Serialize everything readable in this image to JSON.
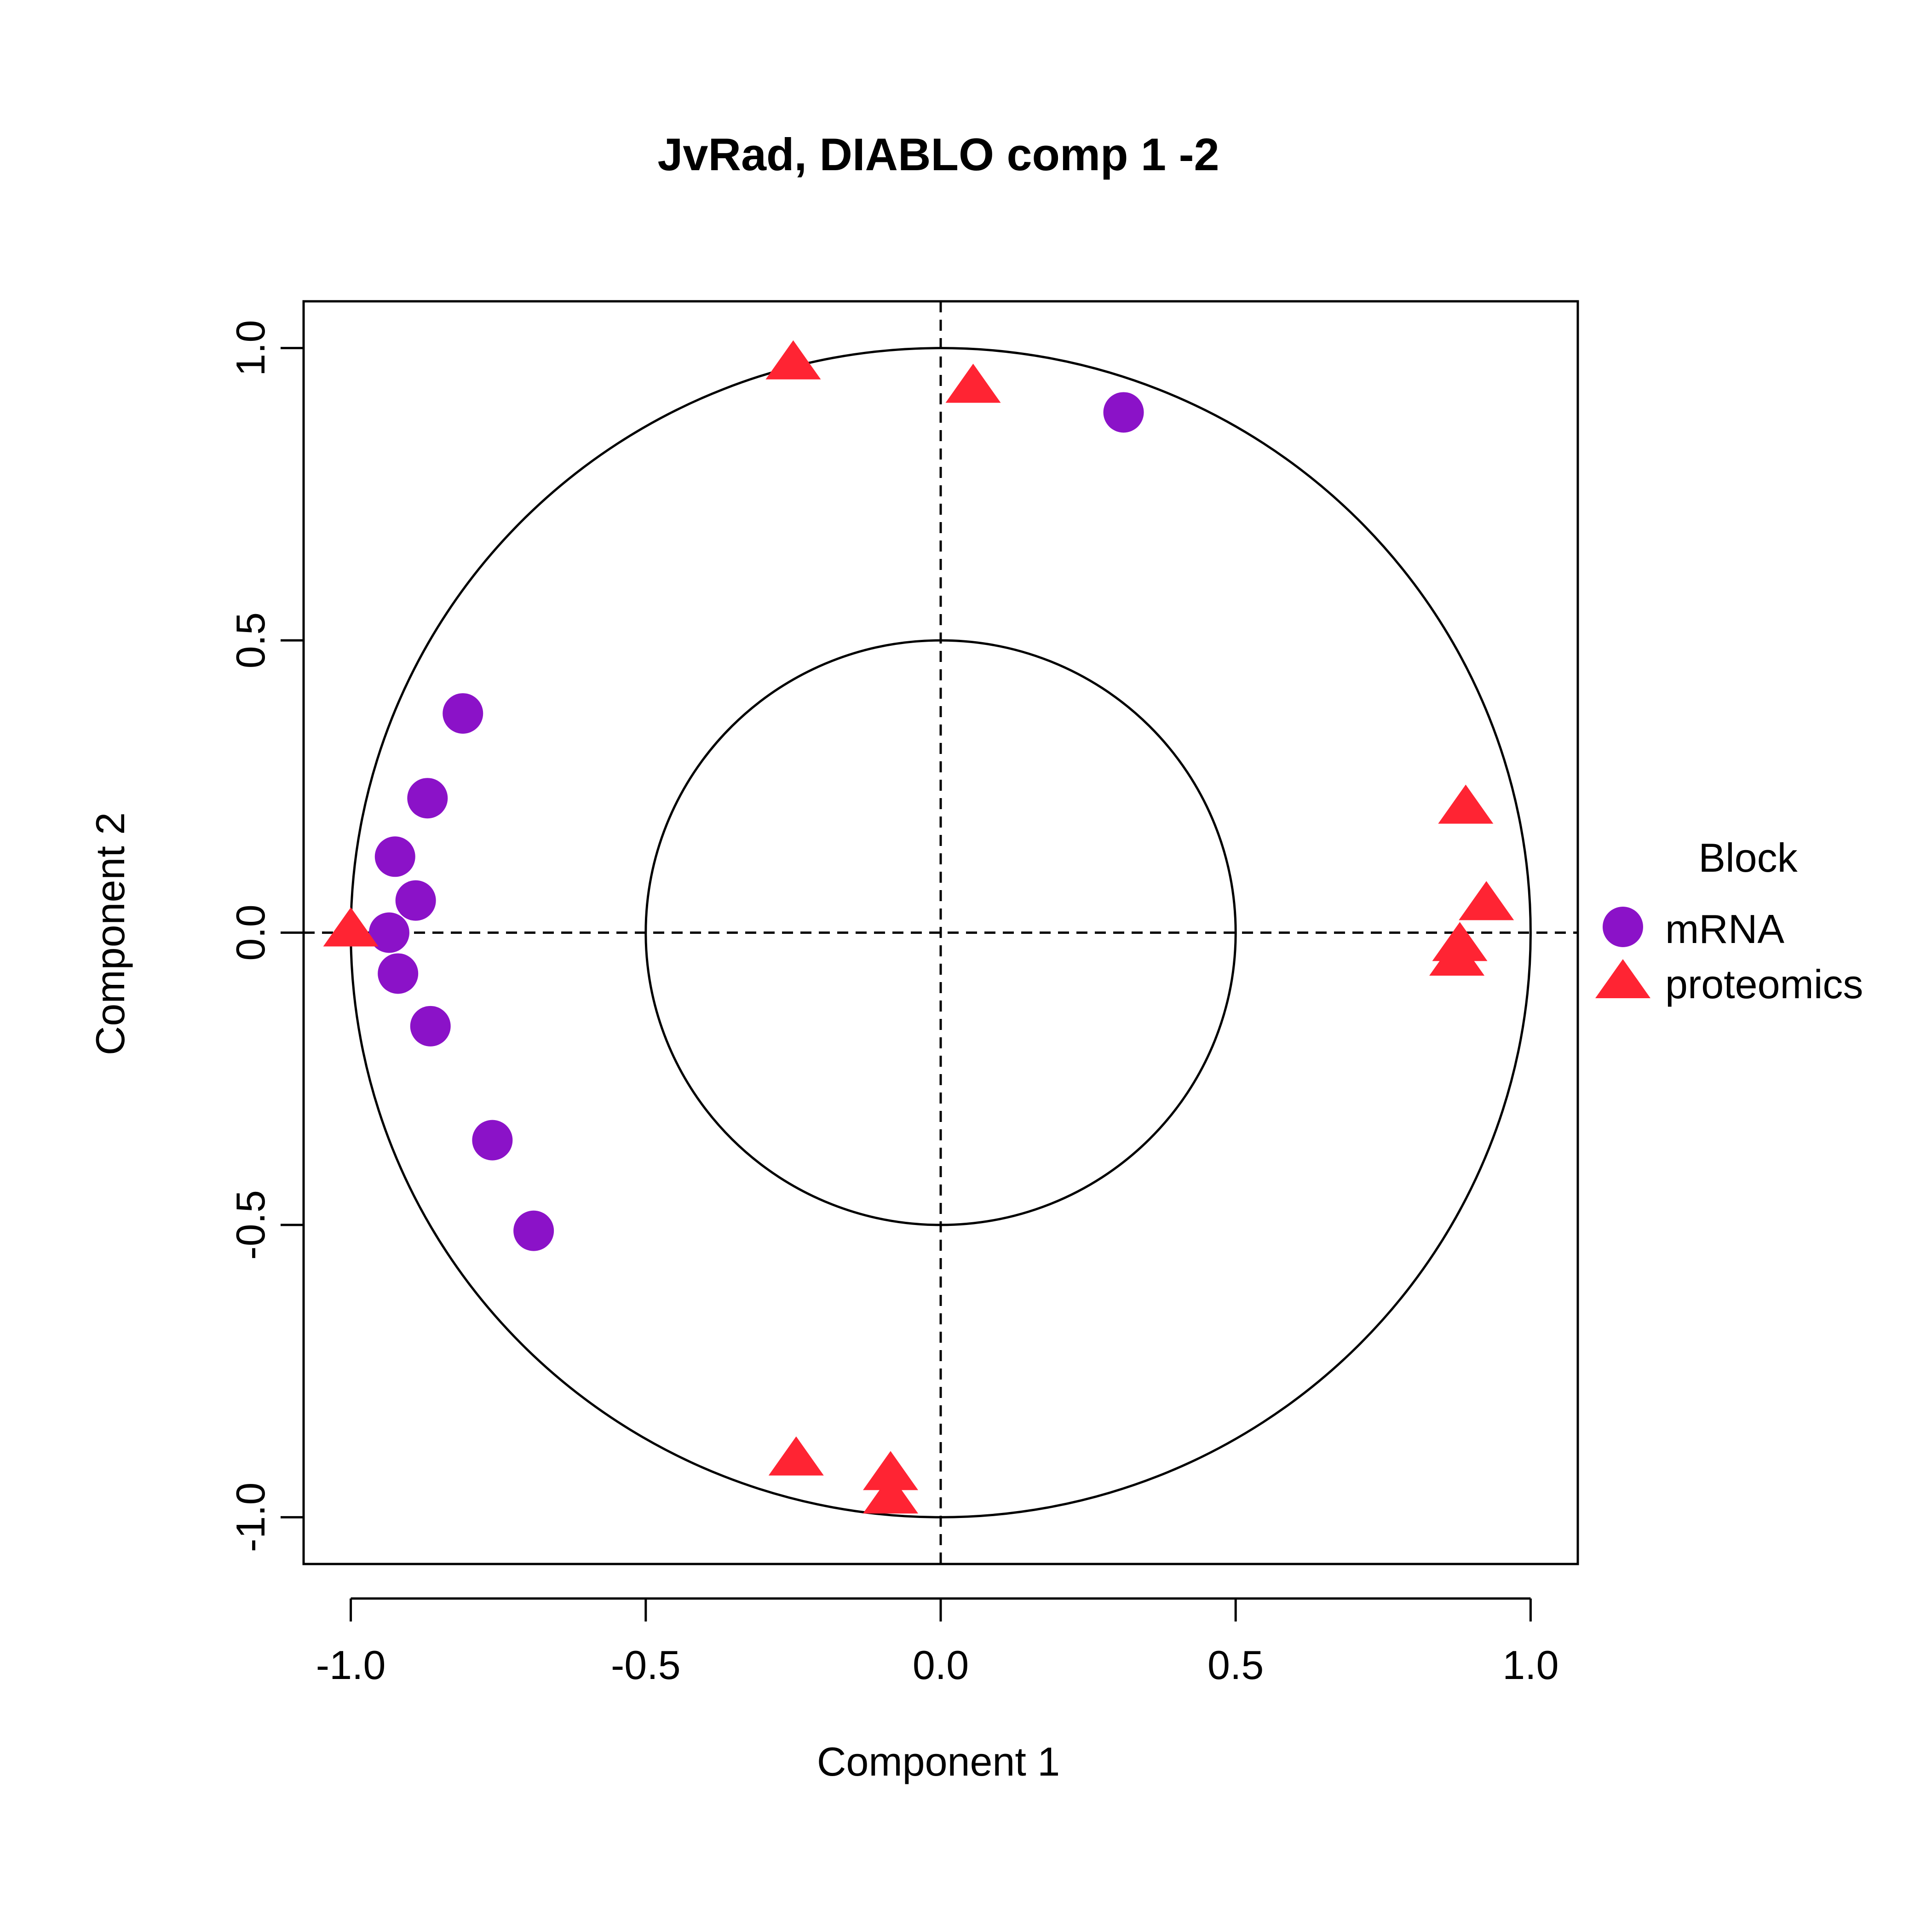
{
  "chart_data": {
    "type": "scatter",
    "title": "JvRad, DIABLO comp 1 -2",
    "xlabel": "Component  1",
    "ylabel": "Component  2",
    "xlim": [
      -1.08,
      1.08
    ],
    "ylim": [
      -1.08,
      1.08
    ],
    "xticks": [
      -1.0,
      -0.5,
      0.0,
      0.5,
      1.0
    ],
    "yticks": [
      -1.0,
      -0.5,
      0.0,
      0.5,
      1.0
    ],
    "xtick_labels": [
      "-1.0",
      "-0.5",
      "0.0",
      "0.5",
      "1.0"
    ],
    "ytick_labels": [
      "-1.0",
      "-0.5",
      "0.0",
      "0.5",
      "1.0"
    ],
    "circles": [
      1.0,
      0.5
    ],
    "reference_lines": {
      "x": 0,
      "y": 0,
      "style": "dashed"
    },
    "grid": false,
    "legend": {
      "title": "Block",
      "placement": "right"
    },
    "series": [
      {
        "name": "mRNA",
        "marker": "circle",
        "color": "#8B12C8",
        "points": [
          {
            "x": 0.31,
            "y": 0.89
          },
          {
            "x": -0.81,
            "y": 0.375
          },
          {
            "x": -0.87,
            "y": 0.23
          },
          {
            "x": -0.925,
            "y": 0.13
          },
          {
            "x": -0.89,
            "y": 0.055
          },
          {
            "x": -0.935,
            "y": 0.0
          },
          {
            "x": -0.92,
            "y": -0.07
          },
          {
            "x": -0.865,
            "y": -0.16
          },
          {
            "x": -0.76,
            "y": -0.355
          },
          {
            "x": -0.69,
            "y": -0.51
          }
        ]
      },
      {
        "name": "proteomics",
        "marker": "triangle",
        "color": "#FF2433",
        "points": [
          {
            "x": -0.25,
            "y": 0.97
          },
          {
            "x": 0.055,
            "y": 0.93
          },
          {
            "x": -1.0,
            "y": 0.0
          },
          {
            "x": 0.89,
            "y": 0.21
          },
          {
            "x": 0.925,
            "y": 0.045
          },
          {
            "x": 0.88,
            "y": -0.025
          },
          {
            "x": 0.875,
            "y": -0.05
          },
          {
            "x": -0.245,
            "y": -0.905
          },
          {
            "x": -0.085,
            "y": -0.93
          },
          {
            "x": -0.085,
            "y": -0.97
          }
        ]
      }
    ]
  }
}
